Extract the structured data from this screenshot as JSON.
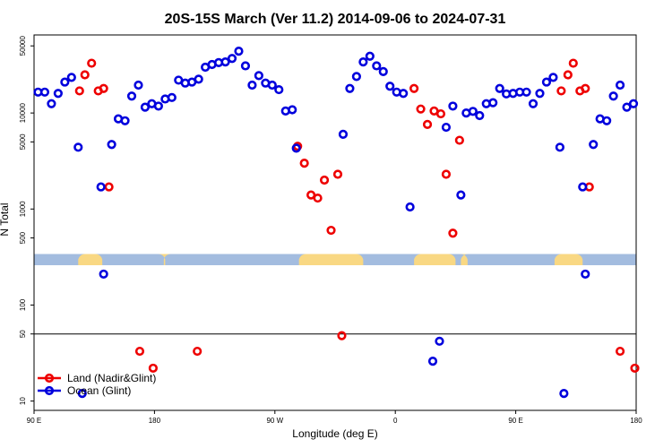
{
  "chart_data": {
    "type": "scatter",
    "title": "20S-15S March (Ver 11.2)   2014-09-06 to 2024-07-31",
    "xlabel": "Longitude (deg E)",
    "ylabel": "N Total",
    "y_scale": "log",
    "xlim": [
      90,
      540
    ],
    "ylim": [
      8,
      65000
    ],
    "x_ticks": [
      {
        "value": 90,
        "label": "90 E"
      },
      {
        "value": 180,
        "label": "180"
      },
      {
        "value": 270,
        "label": "90 W"
      },
      {
        "value": 360,
        "label": "0"
      },
      {
        "value": 450,
        "label": "90 E"
      },
      {
        "value": 540,
        "label": "180"
      }
    ],
    "y_ticks": [
      {
        "value": 10,
        "label": "10"
      },
      {
        "value": 50,
        "label": "50"
      },
      {
        "value": 100,
        "label": "100"
      },
      {
        "value": 500,
        "label": "500"
      },
      {
        "value": 1000,
        "label": "1000"
      },
      {
        "value": 5000,
        "label": "5000"
      },
      {
        "value": 10000,
        "label": "10000"
      },
      {
        "value": 50000,
        "label": "50000"
      }
    ],
    "reference_line_y": 50,
    "land_ocean_strip": {
      "y_low": 260,
      "y_high": 340,
      "ocean_color": "#a3bcdf",
      "land_color": "#f9d883",
      "land_segments": [
        [
          123,
          141
        ],
        [
          187,
          188
        ],
        [
          288,
          336
        ],
        [
          374,
          405
        ],
        [
          409,
          414
        ],
        [
          479,
          500
        ]
      ]
    },
    "legend": {
      "position": "bottom-left",
      "entries": [
        {
          "label": "Land (Nadir&Glint)",
          "color": "#ee0000"
        },
        {
          "label": "Ocean (Glint)",
          "color": "#0000dd"
        }
      ]
    },
    "series": [
      {
        "name": "Land (Nadir&Glint)",
        "color": "#ee0000",
        "points": [
          {
            "x": 124,
            "y": 17000
          },
          {
            "x": 128,
            "y": 25000
          },
          {
            "x": 133,
            "y": 33000
          },
          {
            "x": 138,
            "y": 17000
          },
          {
            "x": 142,
            "y": 18000
          },
          {
            "x": 146,
            "y": 1700
          },
          {
            "x": 169,
            "y": 33
          },
          {
            "x": 179,
            "y": 22
          },
          {
            "x": 212,
            "y": 33
          },
          {
            "x": 287,
            "y": 4500
          },
          {
            "x": 292,
            "y": 3000
          },
          {
            "x": 297,
            "y": 1400
          },
          {
            "x": 302,
            "y": 1300
          },
          {
            "x": 307,
            "y": 2000
          },
          {
            "x": 312,
            "y": 600
          },
          {
            "x": 317,
            "y": 2300
          },
          {
            "x": 320,
            "y": 48
          },
          {
            "x": 374,
            "y": 18000
          },
          {
            "x": 379,
            "y": 11000
          },
          {
            "x": 384,
            "y": 7600
          },
          {
            "x": 389,
            "y": 10500
          },
          {
            "x": 394,
            "y": 9800
          },
          {
            "x": 398,
            "y": 2300
          },
          {
            "x": 403,
            "y": 560
          },
          {
            "x": 408,
            "y": 5200
          },
          {
            "x": 484,
            "y": 17000
          },
          {
            "x": 489,
            "y": 25000
          },
          {
            "x": 493,
            "y": 33000
          },
          {
            "x": 498,
            "y": 17000
          },
          {
            "x": 502,
            "y": 18000
          },
          {
            "x": 505,
            "y": 1700
          },
          {
            "x": 528,
            "y": 33
          },
          {
            "x": 539,
            "y": 22
          }
        ]
      },
      {
        "name": "Ocean (Glint)",
        "color": "#0000dd",
        "points": [
          {
            "x": 93,
            "y": 16500
          },
          {
            "x": 98,
            "y": 16500
          },
          {
            "x": 103,
            "y": 12500
          },
          {
            "x": 108,
            "y": 16000
          },
          {
            "x": 113,
            "y": 21000
          },
          {
            "x": 118,
            "y": 23500
          },
          {
            "x": 123,
            "y": 4400
          },
          {
            "x": 126,
            "y": 12
          },
          {
            "x": 140,
            "y": 1700
          },
          {
            "x": 142,
            "y": 210
          },
          {
            "x": 148,
            "y": 4700
          },
          {
            "x": 153,
            "y": 8700
          },
          {
            "x": 158,
            "y": 8300
          },
          {
            "x": 163,
            "y": 15000
          },
          {
            "x": 168,
            "y": 19500
          },
          {
            "x": 173,
            "y": 11500
          },
          {
            "x": 178,
            "y": 12500
          },
          {
            "x": 183,
            "y": 11800
          },
          {
            "x": 188,
            "y": 14000
          },
          {
            "x": 193,
            "y": 14500
          },
          {
            "x": 198,
            "y": 22000
          },
          {
            "x": 203,
            "y": 20500
          },
          {
            "x": 208,
            "y": 21000
          },
          {
            "x": 213,
            "y": 22500
          },
          {
            "x": 218,
            "y": 30000
          },
          {
            "x": 223,
            "y": 32000
          },
          {
            "x": 228,
            "y": 33500
          },
          {
            "x": 233,
            "y": 34000
          },
          {
            "x": 238,
            "y": 37000
          },
          {
            "x": 243,
            "y": 44000
          },
          {
            "x": 248,
            "y": 31000
          },
          {
            "x": 253,
            "y": 19500
          },
          {
            "x": 258,
            "y": 24500
          },
          {
            "x": 263,
            "y": 20500
          },
          {
            "x": 268,
            "y": 19500
          },
          {
            "x": 273,
            "y": 17500
          },
          {
            "x": 278,
            "y": 10500
          },
          {
            "x": 283,
            "y": 10800
          },
          {
            "x": 286,
            "y": 4300
          },
          {
            "x": 321,
            "y": 6000
          },
          {
            "x": 326,
            "y": 18000
          },
          {
            "x": 331,
            "y": 24000
          },
          {
            "x": 336,
            "y": 34000
          },
          {
            "x": 341,
            "y": 39000
          },
          {
            "x": 346,
            "y": 31000
          },
          {
            "x": 351,
            "y": 27000
          },
          {
            "x": 356,
            "y": 19000
          },
          {
            "x": 361,
            "y": 16500
          },
          {
            "x": 366,
            "y": 16000
          },
          {
            "x": 371,
            "y": 1050
          },
          {
            "x": 388,
            "y": 26
          },
          {
            "x": 393,
            "y": 42
          },
          {
            "x": 398,
            "y": 7100
          },
          {
            "x": 403,
            "y": 11800
          },
          {
            "x": 409,
            "y": 1400
          },
          {
            "x": 413,
            "y": 10000
          },
          {
            "x": 418,
            "y": 10400
          },
          {
            "x": 423,
            "y": 9400
          },
          {
            "x": 428,
            "y": 12500
          },
          {
            "x": 433,
            "y": 12800
          },
          {
            "x": 438,
            "y": 18000
          },
          {
            "x": 443,
            "y": 15800
          },
          {
            "x": 448,
            "y": 16000
          },
          {
            "x": 453,
            "y": 16500
          },
          {
            "x": 458,
            "y": 16500
          },
          {
            "x": 463,
            "y": 12500
          },
          {
            "x": 468,
            "y": 16000
          },
          {
            "x": 473,
            "y": 21000
          },
          {
            "x": 478,
            "y": 23500
          },
          {
            "x": 483,
            "y": 4400
          },
          {
            "x": 486,
            "y": 12
          },
          {
            "x": 500,
            "y": 1700
          },
          {
            "x": 502,
            "y": 210
          },
          {
            "x": 508,
            "y": 4700
          },
          {
            "x": 513,
            "y": 8700
          },
          {
            "x": 518,
            "y": 8300
          },
          {
            "x": 523,
            "y": 15000
          },
          {
            "x": 528,
            "y": 19500
          },
          {
            "x": 533,
            "y": 11500
          },
          {
            "x": 538,
            "y": 12500
          }
        ]
      }
    ]
  }
}
